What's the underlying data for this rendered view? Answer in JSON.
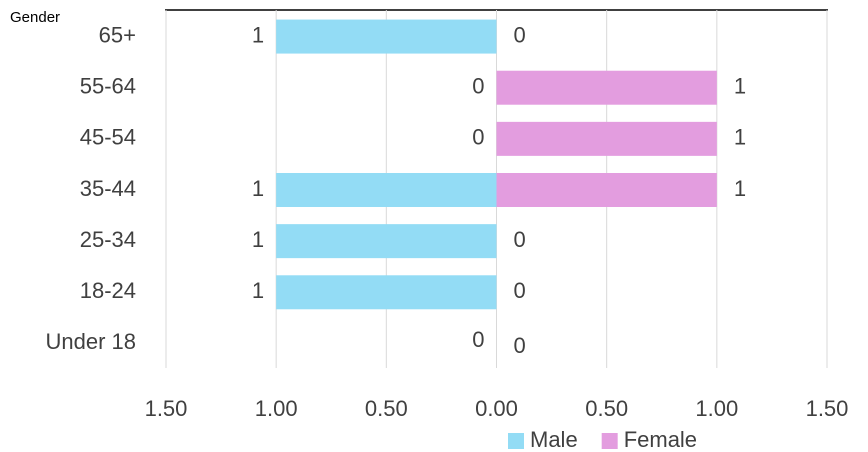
{
  "chart_data": {
    "type": "bar",
    "orientation": "horizontal",
    "layout": "diverging",
    "axis_title": "Gender",
    "categories": [
      "65+",
      "55-64",
      "45-54",
      "35-44",
      "25-34",
      "18-24",
      "Under 18"
    ],
    "series": [
      {
        "name": "Male",
        "color": "#93dcf5",
        "values": [
          -1,
          0,
          0,
          -1,
          -1,
          -1,
          0
        ],
        "value_labels": [
          "1",
          "0",
          "0",
          "1",
          "1",
          "1",
          "0"
        ]
      },
      {
        "name": "Female",
        "color": "#e39ddf",
        "values": [
          0,
          1,
          1,
          1,
          0,
          0,
          0
        ]
      }
    ],
    "xlim": [
      -1.5,
      1.5
    ],
    "xticks": [
      {
        "value": -1.5,
        "label": "1.50"
      },
      {
        "value": -1,
        "label": "1.00"
      },
      {
        "value": -0.5,
        "label": "0.50"
      },
      {
        "value": 0,
        "label": "0.00"
      },
      {
        "value": 0.5,
        "label": "0.50"
      },
      {
        "value": 1,
        "label": "1.00"
      },
      {
        "value": 1.5,
        "label": "1.50"
      }
    ],
    "grid": true,
    "legend": "bottom"
  }
}
